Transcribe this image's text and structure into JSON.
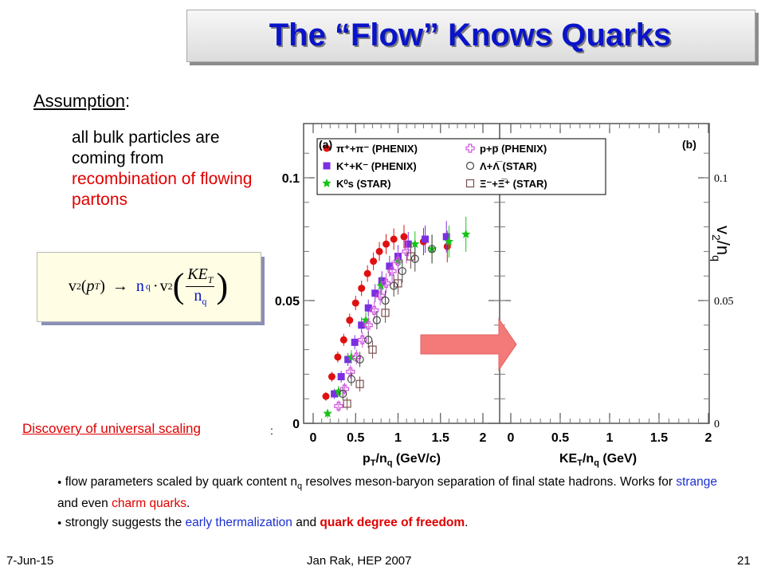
{
  "slide": {
    "title": "The “Flow” Knows Quarks",
    "assumption_label": "Assumption",
    "assumption_colon": ":",
    "bulk_text_1": "all bulk particles are coming from",
    "bulk_text_2": "recombination of flowing partons",
    "formula": {
      "lhs_v": "v",
      "lhs_sub": "2",
      "lhs_arg": "(",
      "lhs_p": "p",
      "lhs_T": "T",
      "lhs_close": ")",
      "arrow": "→",
      "nq": "n",
      "nq_sub": "q",
      "dot": "·",
      "rhs_v": "v",
      "rhs_sub": "2",
      "ke": "KE",
      "ke_sub": "T",
      "den_n": "n",
      "den_sub": "q"
    },
    "discovery": "Discovery of universal scaling",
    "discovery_colon": ":",
    "bullet1_a": "flow parameters scaled by quark content n",
    "bullet1_sub": "q",
    "bullet1_b": " resolves meson-baryon separation of final state hadrons. Works for ",
    "bullet1_strange": "strange",
    "bullet1_c": " and even ",
    "bullet1_charm": "charm quarks",
    "bullet1_d": ".",
    "bullet2_a": "strongly suggests the ",
    "bullet2_early": "early thermalization",
    "bullet2_b": " and ",
    "bullet2_quark": "quark degree of freedom",
    "bullet2_c": ".",
    "footer_date": "7-Jun-15",
    "footer_author": "Jan Rak, HEP 2007",
    "footer_page": "21"
  },
  "chart_data": {
    "type": "scatter",
    "panels": [
      {
        "label": "(a)",
        "xlabel": "p",
        "xlabel_sub": "T",
        "xlabel_mid": "/n",
        "xlabel_sub2": "q",
        "xlabel_unit": " (GeV/c)",
        "xticks": [
          "0",
          "0.5",
          "1",
          "1.5",
          "2"
        ],
        "yticks": [
          "0",
          "0.05",
          "0.1"
        ]
      },
      {
        "label": "(b)",
        "xlabel": "KE",
        "xlabel_sub": "T",
        "xlabel_mid": "/n",
        "xlabel_sub2": "q",
        "xlabel_unit": " (GeV)",
        "xticks": [
          "0",
          "0.5",
          "1",
          "1.5",
          "2"
        ],
        "right_yticks": [
          "0",
          "0.05",
          "0.1"
        ]
      }
    ],
    "ylabel_right": "v",
    "ylabel_right_sub": "2",
    "ylabel_right_mid": "/n",
    "ylabel_right_sub2": "q",
    "xlim": [
      0,
      2
    ],
    "ylim": [
      0,
      0.11
    ],
    "legend_position": "top-right of panel (a)",
    "legend": [
      {
        "name": "π⁺+π⁻ (PHENIX)",
        "color": "#e01010",
        "marker": "circle-filled"
      },
      {
        "name": "K⁺+K⁻ (PHENIX)",
        "color": "#7a2fe0",
        "marker": "square-filled"
      },
      {
        "name": "K⁰s (STAR)",
        "color": "#17c417",
        "marker": "star"
      },
      {
        "name": "p+p̅ (PHENIX)",
        "color": "#d050e0",
        "marker": "cross-open"
      },
      {
        "name": "Λ+Λ̅ (STAR)",
        "color": "#444444",
        "marker": "circle-open"
      },
      {
        "name": "Ξ⁻+Ξ̅⁺ (STAR)",
        "color": "#7a5050",
        "marker": "square-open"
      }
    ],
    "series": [
      {
        "name": "π⁺+π⁻ (PHENIX)",
        "marker": "circle-filled",
        "color": "#e01010",
        "x": [
          0.15,
          0.22,
          0.29,
          0.36,
          0.43,
          0.5,
          0.57,
          0.64,
          0.71,
          0.78,
          0.86,
          0.95,
          1.07,
          1.3,
          1.58
        ],
        "y": [
          0.011,
          0.019,
          0.027,
          0.034,
          0.042,
          0.049,
          0.055,
          0.061,
          0.066,
          0.07,
          0.073,
          0.075,
          0.076,
          0.074,
          0.072
        ]
      },
      {
        "name": "K⁺+K⁻ (PHENIX)",
        "marker": "square-filled",
        "color": "#7a2fe0",
        "x": [
          0.25,
          0.33,
          0.41,
          0.49,
          0.57,
          0.65,
          0.73,
          0.81,
          0.9,
          1.0,
          1.12,
          1.32,
          1.57
        ],
        "y": [
          0.012,
          0.019,
          0.026,
          0.033,
          0.04,
          0.047,
          0.053,
          0.058,
          0.064,
          0.068,
          0.073,
          0.075,
          0.076
        ]
      },
      {
        "name": "K⁰s (STAR)",
        "marker": "star",
        "color": "#17c417",
        "x": [
          0.17,
          0.3,
          0.45,
          0.62,
          0.8,
          1.0,
          1.2,
          1.4,
          1.6,
          1.8
        ],
        "y": [
          0.004,
          0.013,
          0.027,
          0.042,
          0.056,
          0.066,
          0.073,
          0.071,
          0.074,
          0.077
        ]
      },
      {
        "name": "p+p̅ (PHENIX)",
        "marker": "cross-open",
        "color": "#d050e0",
        "x": [
          0.3,
          0.37,
          0.44,
          0.51,
          0.58,
          0.65,
          0.72,
          0.79,
          0.86,
          0.93,
          1.0,
          1.1
        ],
        "y": [
          0.007,
          0.014,
          0.021,
          0.027,
          0.034,
          0.04,
          0.046,
          0.052,
          0.057,
          0.062,
          0.066,
          0.07
        ]
      },
      {
        "name": "Λ+Λ̅ (STAR)",
        "marker": "circle-open",
        "color": "#444444",
        "x": [
          0.35,
          0.45,
          0.55,
          0.65,
          0.75,
          0.85,
          0.95,
          1.05,
          1.2,
          1.4
        ],
        "y": [
          0.012,
          0.018,
          0.026,
          0.034,
          0.042,
          0.05,
          0.056,
          0.062,
          0.067,
          0.071
        ]
      },
      {
        "name": "Ξ⁻+Ξ̅⁺ (STAR)",
        "marker": "square-open",
        "color": "#7a5050",
        "x": [
          0.4,
          0.55,
          0.7,
          0.85,
          1.0,
          1.15
        ],
        "y": [
          0.008,
          0.016,
          0.03,
          0.045,
          0.057,
          0.068
        ]
      }
    ]
  }
}
